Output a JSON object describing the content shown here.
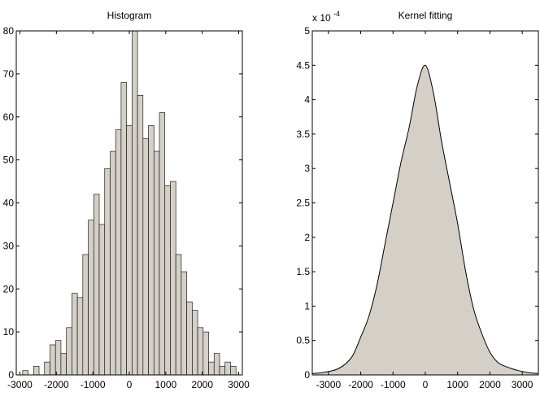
{
  "colors": {
    "fill": "#d4d0c8",
    "stroke": "#000000",
    "background": "#ffffff"
  },
  "chart_data": [
    {
      "type": "bar",
      "title": "Histogram",
      "xlabel": "",
      "ylabel": "",
      "xlim": [
        -3100,
        3100
      ],
      "ylim": [
        0,
        80
      ],
      "grid": false,
      "bin_width": 150,
      "x_ticks": [
        -3000,
        -2000,
        -1000,
        0,
        1000,
        2000,
        3000
      ],
      "x_tick_labels": [
        "-3000",
        "-2000",
        "-1000",
        "0",
        "1000",
        "2000",
        "3000"
      ],
      "y_ticks": [
        0,
        10,
        20,
        30,
        40,
        50,
        60,
        70,
        80
      ],
      "y_tick_labels": [
        "0",
        "10",
        "20",
        "30",
        "40",
        "50",
        "60",
        "70",
        "80"
      ],
      "bin_centers": [
        -2850,
        -2700,
        -2550,
        -2400,
        -2250,
        -2100,
        -1950,
        -1800,
        -1650,
        -1500,
        -1350,
        -1200,
        -1050,
        -900,
        -750,
        -600,
        -450,
        -300,
        -150,
        0,
        150,
        300,
        450,
        600,
        750,
        900,
        1050,
        1200,
        1350,
        1500,
        1650,
        1800,
        1950,
        2100,
        2250,
        2400,
        2550,
        2700,
        2850
      ],
      "values": [
        1,
        0,
        2,
        0,
        3,
        7,
        8,
        5,
        11,
        19,
        18,
        28,
        36,
        42,
        35,
        48,
        52,
        57,
        68,
        58,
        80,
        65,
        55,
        58,
        52,
        61,
        44,
        45,
        28,
        24,
        17,
        15,
        11,
        10,
        3,
        5,
        2,
        3,
        2
      ]
    },
    {
      "type": "area",
      "title": "Kernel fitting",
      "xlabel": "",
      "ylabel": "",
      "y_multiplier_label": "x 10",
      "y_multiplier_exponent": "-4",
      "xlim": [
        -3500,
        3500
      ],
      "ylim": [
        0,
        5
      ],
      "grid": false,
      "x_ticks": [
        -3000,
        -2000,
        -1000,
        0,
        1000,
        2000,
        3000
      ],
      "x_tick_labels": [
        "-3000",
        "-2000",
        "-1000",
        "0",
        "1000",
        "2000",
        "3000"
      ],
      "y_ticks": [
        0,
        0.5,
        1,
        1.5,
        2,
        2.5,
        3,
        3.5,
        4,
        4.5,
        5
      ],
      "y_tick_labels": [
        "0",
        "0.5",
        "1",
        "1.5",
        "2",
        "2.5",
        "3",
        "3.5",
        "4",
        "4.5",
        "5"
      ],
      "x": [
        -3500,
        -3250,
        -3000,
        -2750,
        -2500,
        -2250,
        -2000,
        -1750,
        -1500,
        -1250,
        -1000,
        -750,
        -500,
        -250,
        0,
        250,
        500,
        750,
        1000,
        1250,
        1500,
        1750,
        2000,
        2250,
        2500,
        2750,
        3000,
        3250,
        3500
      ],
      "y": [
        0.02,
        0.03,
        0.05,
        0.08,
        0.15,
        0.28,
        0.55,
        0.85,
        1.3,
        1.9,
        2.5,
        3.1,
        3.6,
        4.2,
        4.5,
        4.1,
        3.4,
        2.8,
        2.2,
        1.5,
        0.95,
        0.6,
        0.33,
        0.18,
        0.12,
        0.08,
        0.05,
        0.03,
        0.02
      ]
    }
  ]
}
